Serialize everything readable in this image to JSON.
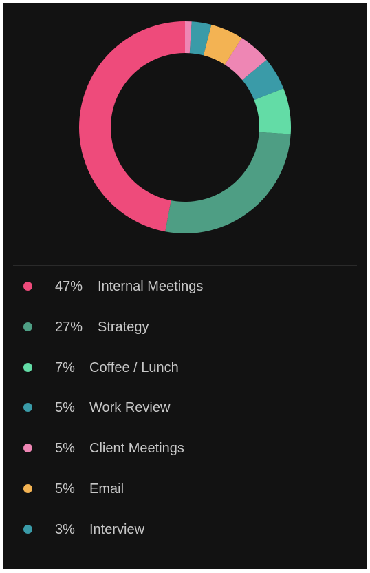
{
  "chart_data": {
    "type": "pie",
    "donut": true,
    "grid": false,
    "legend_placement": "bottom",
    "slices": [
      {
        "label": "Internal Meetings",
        "value": 47,
        "percent_label": "47%",
        "color": "#EE4B7B"
      },
      {
        "label": "Strategy",
        "value": 27,
        "percent_label": "27%",
        "color": "#4E9E84"
      },
      {
        "label": "Coffee / Lunch",
        "value": 7,
        "percent_label": "7%",
        "color": "#63DCA6"
      },
      {
        "label": "Work Review",
        "value": 5,
        "percent_label": "5%",
        "color": "#3A9BA8"
      },
      {
        "label": "Client Meetings",
        "value": 5,
        "percent_label": "5%",
        "color": "#EE86B4"
      },
      {
        "label": "Email",
        "value": 5,
        "percent_label": "5%",
        "color": "#F3B353"
      },
      {
        "label": "Interview",
        "value": 3,
        "percent_label": "3%",
        "color": "#3A9BA8"
      },
      {
        "label": "",
        "value": 1,
        "percent_label": "",
        "color": "#EE86B4"
      }
    ]
  }
}
